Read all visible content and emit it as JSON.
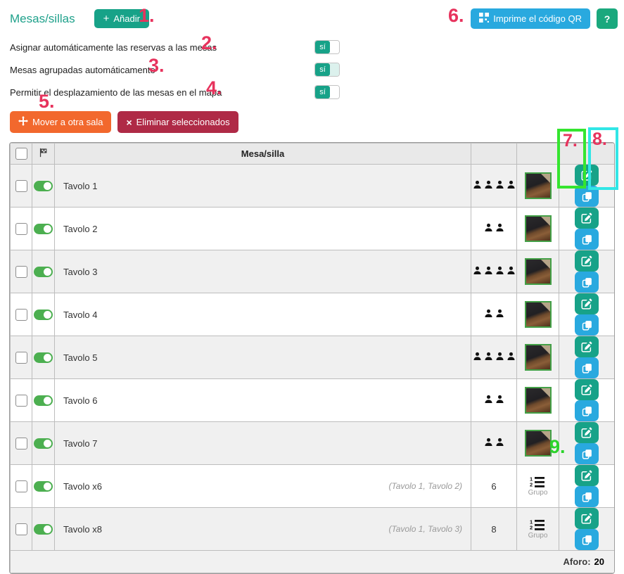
{
  "header": {
    "title": "Mesas/sillas",
    "add_button": "Añadir",
    "qr_button": "Imprime el código QR",
    "help_button": "?"
  },
  "settings": {
    "rows": [
      {
        "label": "Asignar automáticamente las reservas a las mesas",
        "value": "sí"
      },
      {
        "label": "Mesas agrupadas automáticamente",
        "value": "sí"
      },
      {
        "label": "Permitir el desplazamiento de las mesas en el mapa",
        "value": "sí"
      }
    ]
  },
  "toolbar": {
    "move_button": "Mover a otra sala",
    "delete_button": "Eliminar seleccionados"
  },
  "table": {
    "columns": {
      "name": "Mesa/silla"
    },
    "rows": [
      {
        "name": "Tavolo 1",
        "seats": 4,
        "kind": "table"
      },
      {
        "name": "Tavolo 2",
        "seats": 2,
        "kind": "table"
      },
      {
        "name": "Tavolo 3",
        "seats": 4,
        "kind": "table"
      },
      {
        "name": "Tavolo 4",
        "seats": 2,
        "kind": "table"
      },
      {
        "name": "Tavolo 5",
        "seats": 4,
        "kind": "table"
      },
      {
        "name": "Tavolo 6",
        "seats": 2,
        "kind": "table"
      },
      {
        "name": "Tavolo 7",
        "seats": 2,
        "kind": "table"
      },
      {
        "name": "Tavolo x6",
        "detail": "(Tavolo 1, Tavolo 2)",
        "seats": 6,
        "kind": "group",
        "group_label": "Grupo"
      },
      {
        "name": "Tavolo x8",
        "detail": "(Tavolo 1, Tavolo 3)",
        "seats": 8,
        "kind": "group",
        "group_label": "Grupo"
      }
    ],
    "footer": {
      "label": "Aforo:",
      "value": "20"
    }
  },
  "annotations": [
    "1.",
    "2.",
    "3.",
    "4.",
    "5.",
    "6.",
    "7.",
    "8.",
    "9."
  ],
  "colors": {
    "teal": "#17a288",
    "blue": "#29a9df",
    "orange": "#f2682d",
    "crimson": "#af2a46",
    "annotation_pink": "#e7335d",
    "annotation_green": "#2bd42b",
    "highlight_green_box": "#35e52f",
    "highlight_cyan_box": "#31e6e6",
    "row_toggle_green": "#4caf50"
  }
}
